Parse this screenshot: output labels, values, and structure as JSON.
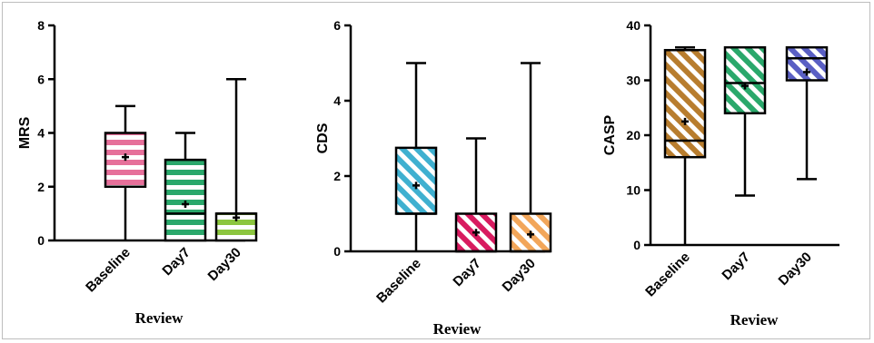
{
  "chart_data": [
    {
      "type": "box",
      "xlabel": "Review",
      "ylabel": "MRS",
      "ylim": [
        0,
        8
      ],
      "yticks": [
        "0",
        "2",
        "4",
        "6",
        "8"
      ],
      "categories": [
        "Baseline",
        "Day7",
        "Day30"
      ],
      "colors": [
        "#e6709a",
        "#2aa86b",
        "#8cc63f"
      ],
      "hatch": "horizontal",
      "boxes": [
        {
          "min": 0,
          "q1": 2,
          "median": 2,
          "q3": 4,
          "max": 5,
          "mean": 3.1
        },
        {
          "min": 0,
          "q1": 0,
          "median": 1,
          "q3": 3,
          "max": 4,
          "mean": 1.35
        },
        {
          "min": 0,
          "q1": 0,
          "median": 1,
          "q3": 1,
          "max": 6,
          "mean": 0.85
        }
      ]
    },
    {
      "type": "box",
      "xlabel": "Review",
      "ylabel": "CDS",
      "ylim": [
        0,
        6
      ],
      "yticks": [
        "0",
        "2",
        "4",
        "6"
      ],
      "categories": [
        "Baseline",
        "Day7",
        "Day30"
      ],
      "colors": [
        "#3fb0d0",
        "#d81b60",
        "#f2a65a"
      ],
      "hatch": "diagonal",
      "boxes": [
        {
          "min": 0,
          "q1": 1,
          "median": 1,
          "q3": 2.75,
          "max": 5,
          "mean": 1.75
        },
        {
          "min": 0,
          "q1": 0,
          "median": 0,
          "q3": 1,
          "max": 3,
          "mean": 0.5
        },
        {
          "min": 0,
          "q1": 0,
          "median": 0,
          "q3": 1,
          "max": 5,
          "mean": 0.45
        }
      ]
    },
    {
      "type": "box",
      "xlabel": "Review",
      "ylabel": "CASP",
      "ylim": [
        0,
        40
      ],
      "yticks": [
        "0",
        "10",
        "20",
        "30",
        "40"
      ],
      "categories": [
        "Baseline",
        "Day7",
        "Day30"
      ],
      "colors": [
        "#b87d2e",
        "#2aa86b",
        "#5a5fc4"
      ],
      "hatch": "diagonal",
      "boxes": [
        {
          "min": 0,
          "q1": 16,
          "median": 19,
          "q3": 35.5,
          "max": 36,
          "mean": 22.5
        },
        {
          "min": 9,
          "q1": 24,
          "median": 29.5,
          "q3": 36,
          "max": 36,
          "mean": 29
        },
        {
          "min": 12,
          "q1": 30,
          "median": 34,
          "q3": 36,
          "max": 36,
          "mean": 31.5
        }
      ]
    }
  ]
}
